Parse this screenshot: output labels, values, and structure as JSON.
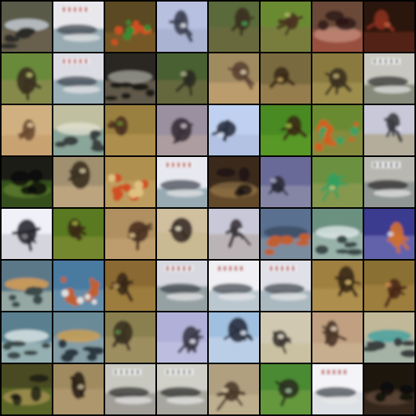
{
  "grid": {
    "rows": 8,
    "cols": 8,
    "tiles": [
      {
        "scene": "water-rocks",
        "bg": "#5a5a48",
        "ground": "#6b6050",
        "blob": "#2a2a28",
        "accent": "#c8d0d8"
      },
      {
        "scene": "sign-water",
        "bg": "#e8e8ec",
        "ground": "#8aa0a8",
        "blob": "#3a4048",
        "accent": "#c03040"
      },
      {
        "scene": "flowers",
        "bg": "#5a4a20",
        "ground": "#7a5a28",
        "blob": "#d05020",
        "accent": "#3a8a30"
      },
      {
        "scene": "sky-creature",
        "bg": "#b8c0e0",
        "ground": "#a8b0d0",
        "blob": "#3a4050",
        "accent": "#e8e8f0"
      },
      {
        "scene": "grass-creature",
        "bg": "#5a6a3a",
        "ground": "#6a6a40",
        "blob": "#3a3020",
        "accent": "#40a050"
      },
      {
        "scene": "green-creature",
        "bg": "#6a8a30",
        "ground": "#7a7a40",
        "blob": "#4a3020",
        "accent": "#b0c060"
      },
      {
        "scene": "dark-red",
        "bg": "#6a4a38",
        "ground": "#a05040",
        "blob": "#2a1818",
        "accent": "#d0a090"
      },
      {
        "scene": "dark-red2",
        "bg": "#2a1410",
        "ground": "#5a2418",
        "blob": "#8a3020",
        "accent": "#c06040"
      },
      {
        "scene": "grass-creature",
        "bg": "#6a8a3a",
        "ground": "#8a8a50",
        "blob": "#3a3020",
        "accent": "#c0c070"
      },
      {
        "scene": "sign-water",
        "bg": "#dcdce4",
        "ground": "#90a8b0",
        "blob": "#384048",
        "accent": "#c03848"
      },
      {
        "scene": "water-rocks",
        "bg": "#2a2820",
        "ground": "#6a6050",
        "blob": "#1a1a18",
        "accent": "#a0a098"
      },
      {
        "scene": "grass-creature",
        "bg": "#4a6030",
        "ground": "#6a6a40",
        "blob": "#2a2a20",
        "accent": "#b0b090"
      },
      {
        "scene": "sand-creature",
        "bg": "#a08a60",
        "ground": "#c0a070",
        "blob": "#5a4030",
        "accent": "#e0d0b0"
      },
      {
        "scene": "sand-creature",
        "bg": "#7a6a40",
        "ground": "#9a8050",
        "blob": "#3a2a18",
        "accent": "#c0a060"
      },
      {
        "scene": "sand-creature",
        "bg": "#8a7a40",
        "ground": "#a09050",
        "blob": "#3a3020",
        "accent": "#c0b070"
      },
      {
        "scene": "sign-water",
        "bg": "#c8c8c0",
        "ground": "#7a8070",
        "blob": "#2a2a28",
        "accent": "#808078"
      },
      {
        "scene": "sand-creature",
        "bg": "#d0b080",
        "ground": "#c8a070",
        "blob": "#6a4a30",
        "accent": "#e8d0a8"
      },
      {
        "scene": "water-rocks",
        "bg": "#c0c0a0",
        "ground": "#80a098",
        "blob": "#3a4040",
        "accent": "#e0e0d0"
      },
      {
        "scene": "grass-creature",
        "bg": "#9a8040",
        "ground": "#b09050",
        "blob": "#4a3020",
        "accent": "#6a8a30"
      },
      {
        "scene": "sky-creature",
        "bg": "#9a90a0",
        "ground": "#b0a0a0",
        "blob": "#3a3038",
        "accent": "#c8c0c8"
      },
      {
        "scene": "sky-creature",
        "bg": "#c0d0f0",
        "ground": "#b0c0e0",
        "blob": "#2a3040",
        "accent": "#e8f0ff"
      },
      {
        "scene": "green-creature",
        "bg": "#4a8a20",
        "ground": "#5a9a28",
        "blob": "#3a2a18",
        "accent": "#a0c040"
      },
      {
        "scene": "flowers",
        "bg": "#6a8a30",
        "ground": "#8a8a40",
        "blob": "#d06020",
        "accent": "#40a060"
      },
      {
        "scene": "sky-creature",
        "bg": "#c8c8d8",
        "ground": "#b0a890",
        "blob": "#3a3a40",
        "accent": "#e0e0f0"
      },
      {
        "scene": "dark-grass",
        "bg": "#1a1a14",
        "ground": "#3a5a20",
        "blob": "#0a0a08",
        "accent": "#6a8a30"
      },
      {
        "scene": "sand-creature",
        "bg": "#a09070",
        "ground": "#c0a880",
        "blob": "#3a3020",
        "accent": "#d8c8a0"
      },
      {
        "scene": "flowers",
        "bg": "#b09050",
        "ground": "#c0a060",
        "blob": "#d05020",
        "accent": "#e0c080"
      },
      {
        "scene": "sign-water",
        "bg": "#e8e8f0",
        "ground": "#8aa0a8",
        "blob": "#3a4048",
        "accent": "#c03040"
      },
      {
        "scene": "dark-red",
        "bg": "#3a2a1a",
        "ground": "#6a5030",
        "blob": "#1a1410",
        "accent": "#a08050"
      },
      {
        "scene": "sky-creature",
        "bg": "#6a6a98",
        "ground": "#8a8aa8",
        "blob": "#2a2a38",
        "accent": "#b0b0d0"
      },
      {
        "scene": "green-creature",
        "bg": "#6a9040",
        "ground": "#8a9a50",
        "blob": "#30a060",
        "accent": "#d0c070"
      },
      {
        "scene": "sign-water",
        "bg": "#b8b8b0",
        "ground": "#8a9090",
        "blob": "#2a2a28",
        "accent": "#707070"
      },
      {
        "scene": "white-creature",
        "bg": "#f0f0f8",
        "ground": "#d0d0d8",
        "blob": "#2a2a30",
        "accent": "#8a8a90"
      },
      {
        "scene": "green-creature",
        "bg": "#5a7a20",
        "ground": "#7a8a30",
        "blob": "#3a2a18",
        "accent": "#a0b040"
      },
      {
        "scene": "sand-creature",
        "bg": "#b09060",
        "ground": "#c0a070",
        "blob": "#4a3020",
        "accent": "#e0c890"
      },
      {
        "scene": "sand-creature",
        "bg": "#d0c0a0",
        "ground": "#c8b890",
        "blob": "#3a3028",
        "accent": "#f0e8d0"
      },
      {
        "scene": "sky-creature",
        "bg": "#c8c8d8",
        "ground": "#b8b0b0",
        "blob": "#3a3438",
        "accent": "#e8e8f0"
      },
      {
        "scene": "water-rocks",
        "bg": "#5a7090",
        "ground": "#8090a0",
        "blob": "#c06030",
        "accent": "#3a4a60"
      },
      {
        "scene": "water-rocks",
        "bg": "#6a9080",
        "ground": "#a0b8b0",
        "blob": "#3a4a48",
        "accent": "#e0e8e8"
      },
      {
        "scene": "sky-creature",
        "bg": "#3a3a90",
        "ground": "#6a6ab0",
        "blob": "#d07030",
        "accent": "#e0e0f0"
      },
      {
        "scene": "water-rocks",
        "bg": "#5a7888",
        "ground": "#a0b0a8",
        "blob": "#3a4848",
        "accent": "#e0a050"
      },
      {
        "scene": "flowers",
        "bg": "#4a7aa0",
        "ground": "#6a90a8",
        "blob": "#c06030",
        "accent": "#e0e0e0"
      },
      {
        "scene": "sand-creature",
        "bg": "#8a6a30",
        "ground": "#a08040",
        "blob": "#3a2818",
        "accent": "#c0a060"
      },
      {
        "scene": "sign-water",
        "bg": "#d8d8e0",
        "ground": "#8a9898",
        "blob": "#3a4048",
        "accent": "#b03040"
      },
      {
        "scene": "sign-water",
        "bg": "#f0f0f4",
        "ground": "#b0c0c8",
        "blob": "#3a4048",
        "accent": "#c03040"
      },
      {
        "scene": "sign-water",
        "bg": "#e0e0e8",
        "ground": "#a0b0b8",
        "blob": "#3a4048",
        "accent": "#b03848"
      },
      {
        "scene": "sand-creature",
        "bg": "#a08040",
        "ground": "#b09050",
        "blob": "#3a2818",
        "accent": "#e0c070"
      },
      {
        "scene": "sand-creature",
        "bg": "#8a7030",
        "ground": "#a08040",
        "blob": "#4a2818",
        "accent": "#d09050"
      },
      {
        "scene": "water-rocks",
        "bg": "#5a8090",
        "ground": "#a0b8b8",
        "blob": "#3a4848",
        "accent": "#e0e8e8"
      },
      {
        "scene": "water-rocks",
        "bg": "#6a8a98",
        "ground": "#8aa0a8",
        "blob": "#2a3840",
        "accent": "#d0a050"
      },
      {
        "scene": "grass-creature",
        "bg": "#8a8050",
        "ground": "#a09060",
        "blob": "#3a3020",
        "accent": "#5a8a40"
      },
      {
        "scene": "sky-creature",
        "bg": "#b0b0d8",
        "ground": "#c0c0e0",
        "blob": "#3a3a48",
        "accent": "#e8e8f8"
      },
      {
        "scene": "sky-creature",
        "bg": "#a0c0e0",
        "ground": "#c0d0e8",
        "blob": "#2a3040",
        "accent": "#e8f0ff"
      },
      {
        "scene": "sand-creature",
        "bg": "#d0c8b0",
        "ground": "#c8c0a0",
        "blob": "#3a3430",
        "accent": "#f0ece0"
      },
      {
        "scene": "sand-creature",
        "bg": "#c0a080",
        "ground": "#c8b090",
        "blob": "#4a3428",
        "accent": "#e8d8c0"
      },
      {
        "scene": "water-rocks",
        "bg": "#c0b898",
        "ground": "#a0b0a8",
        "blob": "#3a4040",
        "accent": "#40a0a0"
      },
      {
        "scene": "dark-grass",
        "bg": "#4a4a20",
        "ground": "#5a6a28",
        "blob": "#1a1a10",
        "accent": "#c0a060"
      },
      {
        "scene": "sand-creature",
        "bg": "#a08a60",
        "ground": "#b09870",
        "blob": "#2a2018",
        "accent": "#d0c0a0"
      },
      {
        "scene": "sign-water",
        "bg": "#c8c8c0",
        "ground": "#9a9890",
        "blob": "#2a2a28",
        "accent": "#808078"
      },
      {
        "scene": "sign-water",
        "bg": "#d0d0c8",
        "ground": "#a0a098",
        "blob": "#2a2a28",
        "accent": "#888880"
      },
      {
        "scene": "sand-creature",
        "bg": "#b0a080",
        "ground": "#c0b090",
        "blob": "#4a3a28",
        "accent": "#e0d0b0"
      },
      {
        "scene": "green-creature",
        "bg": "#4a8a30",
        "ground": "#6a9a40",
        "blob": "#2a3020",
        "accent": "#a0c0a0"
      },
      {
        "scene": "sign-water",
        "bg": "#f4f4f8",
        "ground": "#d8dce0",
        "blob": "#3a4048",
        "accent": "#c03040"
      },
      {
        "scene": "dark-red",
        "bg": "#1a1410",
        "ground": "#3a2a20",
        "blob": "#0a0808",
        "accent": "#6a5040"
      }
    ]
  }
}
